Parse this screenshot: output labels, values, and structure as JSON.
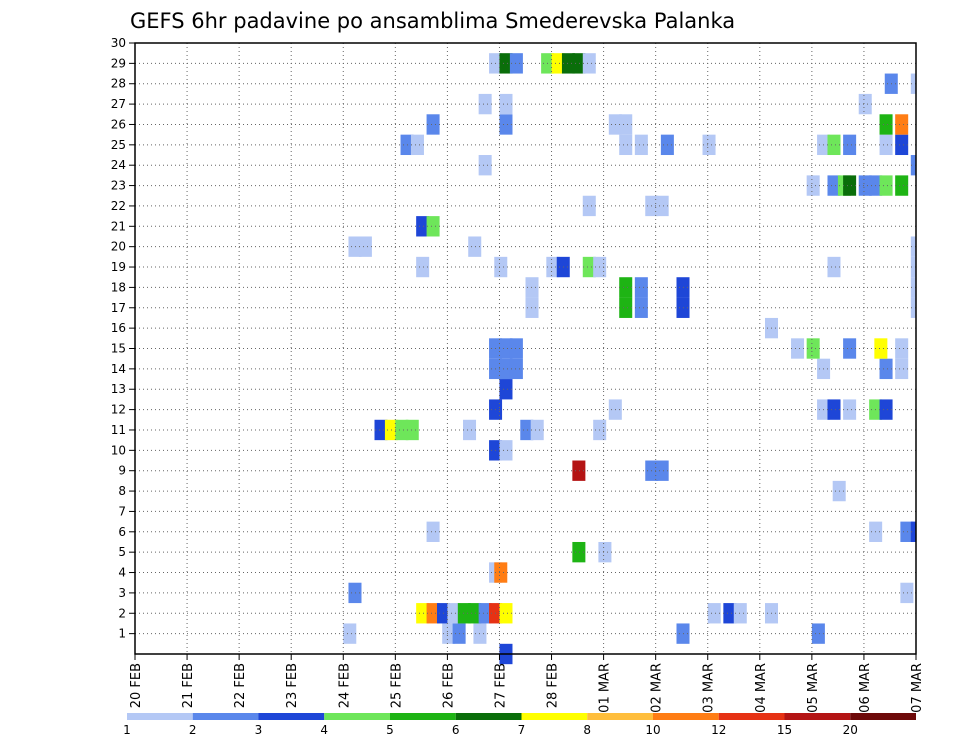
{
  "chart_data": {
    "type": "heatmap",
    "title": "GEFS 6hr padavine po ansamblima Smederevska Palanka",
    "xlabel": "",
    "ylabel": "",
    "x_ticks": [
      "20 FEB",
      "21 FEB",
      "22 FEB",
      "23 FEB",
      "24 FEB",
      "25 FEB",
      "26 FEB",
      "27 FEB",
      "28 FEB",
      "01 MAR",
      "02 MAR",
      "03 MAR",
      "04 MAR",
      "05 MAR",
      "06 MAR",
      "07 MAR"
    ],
    "x_range_days": [
      0,
      15
    ],
    "step_hours": 6,
    "y_ticks": [
      1,
      2,
      3,
      4,
      5,
      6,
      7,
      8,
      9,
      10,
      11,
      12,
      13,
      14,
      15,
      16,
      17,
      18,
      19,
      20,
      21,
      22,
      23,
      24,
      25,
      26,
      27,
      28,
      29,
      30
    ],
    "y_range": [
      0,
      30
    ],
    "grid": true,
    "legend": {
      "position": "bottom",
      "labels": [
        "1",
        "2",
        "3",
        "4",
        "5",
        "6",
        "7",
        "8",
        "10",
        "12",
        "15",
        "20"
      ],
      "colors": [
        "#b4c8f5",
        "#5a87eb",
        "#1e46d7",
        "#6ee65a",
        "#1eb414",
        "#0a6e0a",
        "#ffff00",
        "#ffbe3c",
        "#ff7d14",
        "#e63214",
        "#b41414",
        "#6e0a0a"
      ]
    },
    "cells": [
      [
        1,
        4.0,
        0
      ],
      [
        1,
        5.9,
        0
      ],
      [
        1,
        6.1,
        1
      ],
      [
        1,
        6.5,
        0
      ],
      [
        1,
        10.4,
        1
      ],
      [
        1,
        13.0,
        1
      ],
      [
        2,
        5.4,
        6
      ],
      [
        2,
        5.6,
        8
      ],
      [
        2,
        5.8,
        2
      ],
      [
        2,
        6.0,
        0
      ],
      [
        2,
        6.2,
        4
      ],
      [
        2,
        6.4,
        4
      ],
      [
        2,
        6.6,
        1
      ],
      [
        2,
        6.8,
        9
      ],
      [
        2,
        7.0,
        6
      ],
      [
        2,
        11.0,
        0
      ],
      [
        2,
        11.3,
        2
      ],
      [
        2,
        11.5,
        0
      ],
      [
        2,
        12.1,
        0
      ],
      [
        3,
        4.1,
        1
      ],
      [
        3,
        14.7,
        0
      ],
      [
        4,
        6.8,
        0
      ],
      [
        4,
        6.9,
        8
      ],
      [
        5,
        8.4,
        4
      ],
      [
        5,
        8.9,
        0
      ],
      [
        6,
        5.6,
        0
      ],
      [
        6,
        14.1,
        0
      ],
      [
        6,
        14.7,
        1
      ],
      [
        6,
        14.9,
        2
      ],
      [
        8,
        13.4,
        0
      ],
      [
        9,
        8.4,
        10
      ],
      [
        9,
        9.8,
        1
      ],
      [
        9,
        10.0,
        1
      ],
      [
        10,
        6.8,
        2
      ],
      [
        10,
        7.0,
        0
      ],
      [
        11,
        4.6,
        2
      ],
      [
        11,
        4.8,
        6
      ],
      [
        11,
        5.0,
        3
      ],
      [
        11,
        5.2,
        3
      ],
      [
        11,
        6.3,
        0
      ],
      [
        11,
        7.4,
        1
      ],
      [
        11,
        7.6,
        0
      ],
      [
        11,
        8.8,
        0
      ],
      [
        12,
        6.8,
        2
      ],
      [
        12,
        9.1,
        0
      ],
      [
        12,
        13.1,
        0
      ],
      [
        12,
        13.3,
        2
      ],
      [
        12,
        13.6,
        0
      ],
      [
        12,
        14.1,
        3
      ],
      [
        12,
        14.3,
        2
      ],
      [
        13,
        7.0,
        2
      ],
      [
        14,
        6.8,
        1
      ],
      [
        14,
        7.0,
        1
      ],
      [
        14,
        7.2,
        1
      ],
      [
        14,
        13.1,
        0
      ],
      [
        14,
        14.3,
        1
      ],
      [
        14,
        14.6,
        0
      ],
      [
        15,
        6.8,
        1
      ],
      [
        15,
        7.0,
        1
      ],
      [
        15,
        7.2,
        1
      ],
      [
        15,
        12.6,
        0
      ],
      [
        15,
        12.9,
        3
      ],
      [
        15,
        13.6,
        1
      ],
      [
        15,
        14.2,
        6
      ],
      [
        15,
        14.6,
        0
      ],
      [
        16,
        12.1,
        0
      ],
      [
        17,
        7.5,
        0
      ],
      [
        17,
        9.3,
        4
      ],
      [
        17,
        9.6,
        1
      ],
      [
        17,
        10.4,
        2
      ],
      [
        17,
        14.9,
        0
      ],
      [
        18,
        7.5,
        0
      ],
      [
        18,
        9.3,
        4
      ],
      [
        18,
        9.6,
        1
      ],
      [
        18,
        10.4,
        2
      ],
      [
        18,
        14.9,
        0
      ],
      [
        19,
        5.4,
        0
      ],
      [
        19,
        6.9,
        0
      ],
      [
        19,
        7.9,
        0
      ],
      [
        19,
        8.1,
        2
      ],
      [
        19,
        8.6,
        3
      ],
      [
        19,
        8.8,
        0
      ],
      [
        19,
        13.3,
        0
      ],
      [
        19,
        14.9,
        0
      ],
      [
        20,
        4.1,
        0
      ],
      [
        20,
        4.3,
        0
      ],
      [
        20,
        6.4,
        0
      ],
      [
        20,
        14.9,
        0
      ],
      [
        21,
        5.4,
        2
      ],
      [
        21,
        5.6,
        3
      ],
      [
        22,
        8.6,
        0
      ],
      [
        22,
        9.8,
        0
      ],
      [
        22,
        10.0,
        0
      ],
      [
        23,
        12.9,
        0
      ],
      [
        23,
        13.3,
        1
      ],
      [
        23,
        13.5,
        3
      ],
      [
        23,
        13.6,
        5
      ],
      [
        23,
        13.9,
        1
      ],
      [
        23,
        14.1,
        1
      ],
      [
        23,
        14.3,
        3
      ],
      [
        23,
        14.6,
        4
      ],
      [
        24,
        6.6,
        0
      ],
      [
        24,
        14.9,
        1
      ],
      [
        25,
        5.1,
        1
      ],
      [
        25,
        5.3,
        0
      ],
      [
        25,
        9.3,
        0
      ],
      [
        25,
        9.6,
        0
      ],
      [
        25,
        10.1,
        1
      ],
      [
        25,
        10.9,
        0
      ],
      [
        25,
        13.1,
        0
      ],
      [
        25,
        13.3,
        3
      ],
      [
        25,
        13.6,
        1
      ],
      [
        25,
        14.3,
        0
      ],
      [
        25,
        14.6,
        2
      ],
      [
        26,
        5.6,
        1
      ],
      [
        26,
        7.0,
        1
      ],
      [
        26,
        9.1,
        0
      ],
      [
        26,
        9.3,
        0
      ],
      [
        26,
        14.3,
        4
      ],
      [
        26,
        14.6,
        8
      ],
      [
        27,
        6.6,
        0
      ],
      [
        27,
        7.0,
        0
      ],
      [
        27,
        13.9,
        0
      ],
      [
        28,
        14.4,
        1
      ],
      [
        28,
        14.9,
        0
      ],
      [
        29,
        6.8,
        0
      ],
      [
        29,
        7.0,
        5
      ],
      [
        29,
        7.2,
        1
      ],
      [
        29,
        7.8,
        3
      ],
      [
        29,
        8.0,
        6
      ],
      [
        29,
        8.2,
        5
      ],
      [
        29,
        8.4,
        5
      ],
      [
        29,
        8.6,
        0
      ],
      [
        0,
        7.0,
        2
      ]
    ]
  }
}
